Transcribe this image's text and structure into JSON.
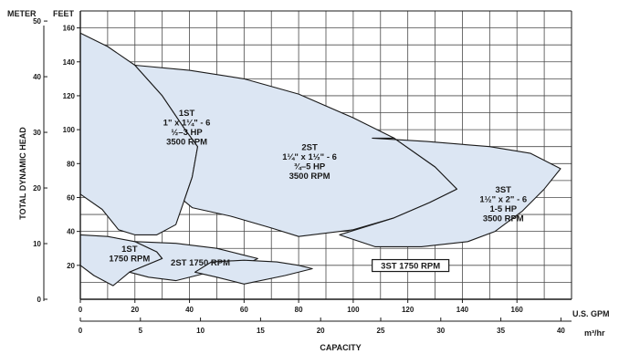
{
  "chart_data": {
    "type": "area",
    "title": "",
    "xlabel": "CAPACITY",
    "ylabel": "TOTAL DYNAMIC HEAD",
    "x_units": {
      "primary": "U.S. GPM",
      "secondary": "m³/hr"
    },
    "y_units": {
      "primary": "FEET",
      "secondary": "METER"
    },
    "xlim": [
      0,
      180
    ],
    "ylim": [
      0,
      170
    ],
    "x_ticks": [
      "0",
      "20",
      "40",
      "60",
      "80",
      "100",
      "120",
      "140",
      "160"
    ],
    "x_ticks_secondary": [
      "0",
      "5",
      "10",
      "15",
      "20",
      "25",
      "30",
      "35",
      "40"
    ],
    "y_ticks": [
      "20",
      "40",
      "60",
      "80",
      "100",
      "120",
      "140",
      "160"
    ],
    "y_ticks_secondary": [
      "0",
      "10",
      "20",
      "30",
      "40",
      "50"
    ],
    "grid": true,
    "fill_color": "#dce6f3",
    "line_color": "#1a1a1a",
    "series": [
      {
        "name": "1ST",
        "label_lines": [
          "1ST",
          "1\" x 1¼\" - 6",
          "½–3 HP",
          "3500 RPM"
        ],
        "points": [
          [
            0,
            157
          ],
          [
            10,
            149
          ],
          [
            20,
            138
          ],
          [
            30,
            120
          ],
          [
            38,
            101
          ],
          [
            43,
            90
          ],
          [
            41,
            72
          ],
          [
            38,
            58
          ],
          [
            35,
            44
          ],
          [
            28,
            38
          ],
          [
            20,
            38
          ],
          [
            14,
            41
          ],
          [
            8,
            53
          ],
          [
            0,
            62
          ]
        ]
      },
      {
        "name": "2ST",
        "label_lines": [
          "2ST",
          "1¼\" x 1½\" - 6",
          "¾–5 HP",
          "3500 RPM"
        ],
        "points": [
          [
            20,
            138
          ],
          [
            40,
            135
          ],
          [
            60,
            130
          ],
          [
            80,
            121
          ],
          [
            100,
            107
          ],
          [
            115,
            95
          ],
          [
            130,
            78
          ],
          [
            138,
            65
          ],
          [
            128,
            57
          ],
          [
            115,
            48
          ],
          [
            100,
            41
          ],
          [
            80,
            37
          ],
          [
            70,
            42
          ],
          [
            55,
            49
          ],
          [
            41,
            54
          ],
          [
            38,
            58
          ],
          [
            41,
            72
          ],
          [
            43,
            90
          ],
          [
            38,
            101
          ],
          [
            30,
            120
          ]
        ]
      },
      {
        "name": "3ST",
        "label_lines": [
          "3ST",
          "1½\" x 2\" - 6",
          "1-5 HP",
          "3500 RPM"
        ],
        "points": [
          [
            107,
            95
          ],
          [
            127,
            93
          ],
          [
            150,
            90
          ],
          [
            165,
            86
          ],
          [
            176,
            77
          ],
          [
            170,
            65
          ],
          [
            162,
            52
          ],
          [
            152,
            40
          ],
          [
            142,
            34
          ],
          [
            125,
            31
          ],
          [
            108,
            31
          ],
          [
            95,
            38
          ],
          [
            115,
            48
          ],
          [
            128,
            57
          ],
          [
            138,
            65
          ],
          [
            130,
            78
          ],
          [
            115,
            95
          ]
        ]
      },
      {
        "name": "1ST",
        "label_lines": [
          "1ST",
          "1750 RPM"
        ],
        "points": [
          [
            0,
            38
          ],
          [
            10,
            37
          ],
          [
            20,
            34
          ],
          [
            28,
            28
          ],
          [
            30,
            24
          ],
          [
            18,
            16
          ],
          [
            12,
            8
          ],
          [
            5,
            14
          ],
          [
            0,
            20
          ]
        ]
      },
      {
        "name": "2ST",
        "label_lines": [
          "2ST 1750 RPM"
        ],
        "points": [
          [
            20,
            34
          ],
          [
            35,
            33
          ],
          [
            50,
            30
          ],
          [
            60,
            26
          ],
          [
            65,
            24
          ],
          [
            60,
            20
          ],
          [
            45,
            15
          ],
          [
            35,
            11
          ],
          [
            25,
            13
          ],
          [
            18,
            16
          ],
          [
            30,
            24
          ],
          [
            28,
            28
          ]
        ]
      },
      {
        "name": "3ST",
        "label_lines": [
          "3ST 1750 RPM"
        ],
        "points": [
          [
            48,
            22
          ],
          [
            60,
            23
          ],
          [
            72,
            22
          ],
          [
            80,
            20
          ],
          [
            85,
            18
          ],
          [
            75,
            14
          ],
          [
            60,
            9
          ],
          [
            50,
            13
          ],
          [
            42,
            16
          ]
        ]
      }
    ]
  }
}
